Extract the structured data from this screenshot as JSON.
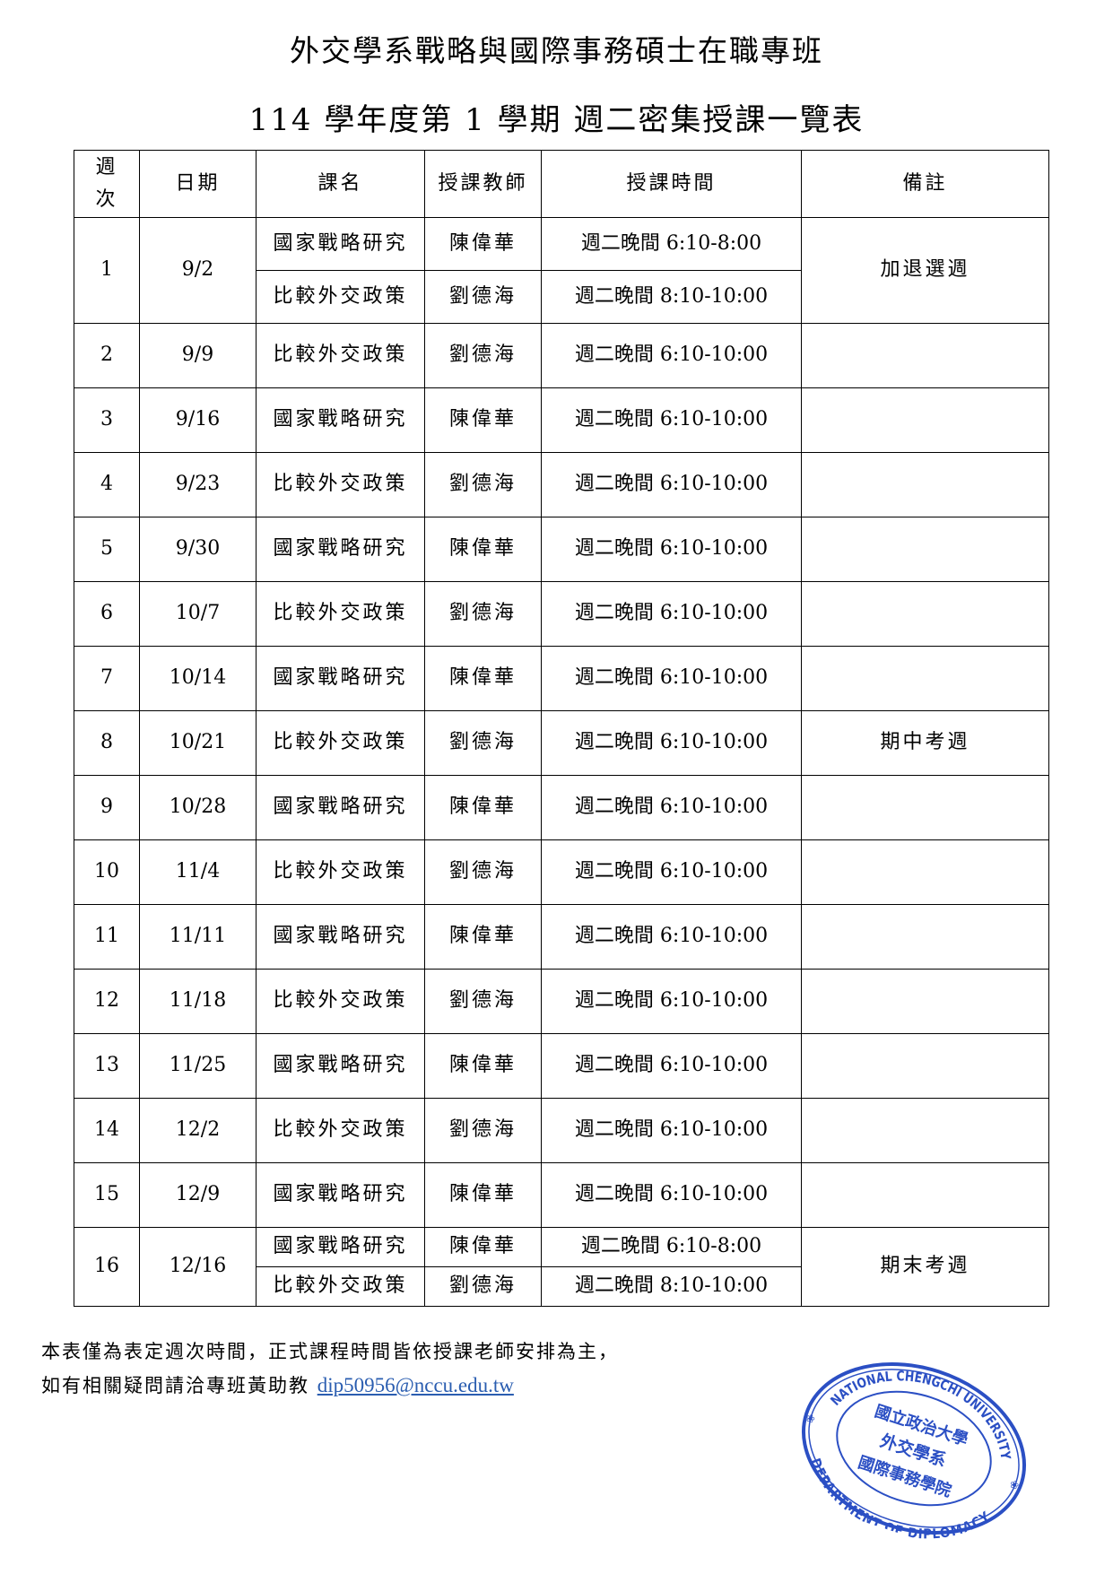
{
  "title": "外交學系戰略與國際事務碩士在職專班",
  "subtitle": "114 學年度第 1 學期  週二密集授課一覽表",
  "columns": {
    "week": "週次",
    "week_top": "週",
    "week_bottom": "次",
    "date": "日期",
    "course": "課名",
    "teacher": "授課教師",
    "time": "授課時間",
    "remark": "備註"
  },
  "rows": [
    {
      "week": "1",
      "date": "9/2",
      "sessions": [
        {
          "course": "國家戰略研究",
          "teacher": "陳偉華",
          "time": "週二晚間 6:10-8:00"
        },
        {
          "course": "比較外交政策",
          "teacher": "劉德海",
          "time": "週二晚間 8:10-10:00"
        }
      ],
      "remark": "加退選週"
    },
    {
      "week": "2",
      "date": "9/9",
      "sessions": [
        {
          "course": "比較外交政策",
          "teacher": "劉德海",
          "time": "週二晚間 6:10-10:00"
        }
      ],
      "remark": ""
    },
    {
      "week": "3",
      "date": "9/16",
      "sessions": [
        {
          "course": "國家戰略研究",
          "teacher": "陳偉華",
          "time": "週二晚間 6:10-10:00"
        }
      ],
      "remark": ""
    },
    {
      "week": "4",
      "date": "9/23",
      "sessions": [
        {
          "course": "比較外交政策",
          "teacher": "劉德海",
          "time": "週二晚間 6:10-10:00"
        }
      ],
      "remark": ""
    },
    {
      "week": "5",
      "date": "9/30",
      "sessions": [
        {
          "course": "國家戰略研究",
          "teacher": "陳偉華",
          "time": "週二晚間 6:10-10:00"
        }
      ],
      "remark": ""
    },
    {
      "week": "6",
      "date": "10/7",
      "sessions": [
        {
          "course": "比較外交政策",
          "teacher": "劉德海",
          "time": "週二晚間 6:10-10:00"
        }
      ],
      "remark": ""
    },
    {
      "week": "7",
      "date": "10/14",
      "sessions": [
        {
          "course": "國家戰略研究",
          "teacher": "陳偉華",
          "time": "週二晚間 6:10-10:00"
        }
      ],
      "remark": ""
    },
    {
      "week": "8",
      "date": "10/21",
      "sessions": [
        {
          "course": "比較外交政策",
          "teacher": "劉德海",
          "time": "週二晚間 6:10-10:00"
        }
      ],
      "remark": "期中考週"
    },
    {
      "week": "9",
      "date": "10/28",
      "sessions": [
        {
          "course": "國家戰略研究",
          "teacher": "陳偉華",
          "time": "週二晚間 6:10-10:00"
        }
      ],
      "remark": ""
    },
    {
      "week": "10",
      "date": "11/4",
      "sessions": [
        {
          "course": "比較外交政策",
          "teacher": "劉德海",
          "time": "週二晚間 6:10-10:00"
        }
      ],
      "remark": ""
    },
    {
      "week": "11",
      "date": "11/11",
      "sessions": [
        {
          "course": "國家戰略研究",
          "teacher": "陳偉華",
          "time": "週二晚間 6:10-10:00"
        }
      ],
      "remark": ""
    },
    {
      "week": "12",
      "date": "11/18",
      "sessions": [
        {
          "course": "比較外交政策",
          "teacher": "劉德海",
          "time": "週二晚間 6:10-10:00"
        }
      ],
      "remark": ""
    },
    {
      "week": "13",
      "date": "11/25",
      "sessions": [
        {
          "course": "國家戰略研究",
          "teacher": "陳偉華",
          "time": "週二晚間 6:10-10:00"
        }
      ],
      "remark": ""
    },
    {
      "week": "14",
      "date": "12/2",
      "sessions": [
        {
          "course": "比較外交政策",
          "teacher": "劉德海",
          "time": "週二晚間 6:10-10:00"
        }
      ],
      "remark": ""
    },
    {
      "week": "15",
      "date": "12/9",
      "sessions": [
        {
          "course": "國家戰略研究",
          "teacher": "陳偉華",
          "time": "週二晚間 6:10-10:00"
        }
      ],
      "remark": ""
    },
    {
      "week": "16",
      "date": "12/16",
      "sessions": [
        {
          "course": "國家戰略研究",
          "teacher": "陳偉華",
          "time": "週二晚間 6:10-8:00"
        },
        {
          "course": "比較外交政策",
          "teacher": "劉德海",
          "time": "週二晚間 8:10-10:00"
        }
      ],
      "remark": "期末考週"
    }
  ],
  "footer": {
    "note_line1": "本表僅為表定週次時間，正式課程時間皆依授課老師安排為主，",
    "note_line2": "如有相關疑問請洽專班黃助教",
    "email": "dip50956@nccu.edu.tw"
  },
  "stamp": {
    "outer_top": "NATIONAL CHENGCHI UNIVERSITY",
    "outer_bottom": "DEPARTMENT OF DIPLOMACY",
    "inner_top": "國立政治大學",
    "inner_middle": "外交學系",
    "inner_bottom": "國際事務學院",
    "color": "#2b4fc4"
  }
}
